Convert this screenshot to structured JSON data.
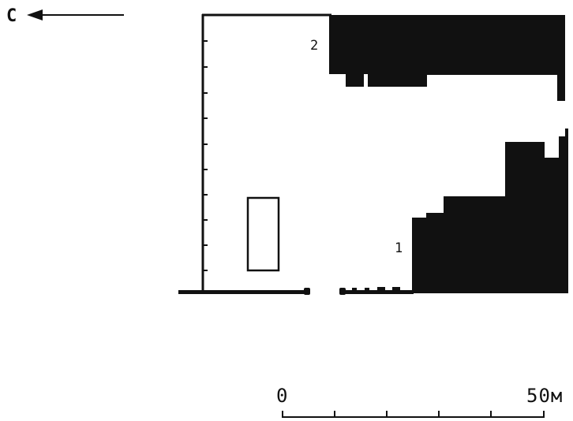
{
  "orientation": {
    "label": "С"
  },
  "buildings": [
    {
      "label": "1",
      "fill": "#111111"
    },
    {
      "label": "2",
      "fill": "#111111"
    }
  ],
  "scale_bar": {
    "start_label": "0",
    "end_label": "50м"
  },
  "colors": {
    "ink": "#111111",
    "background": "#ffffff"
  }
}
